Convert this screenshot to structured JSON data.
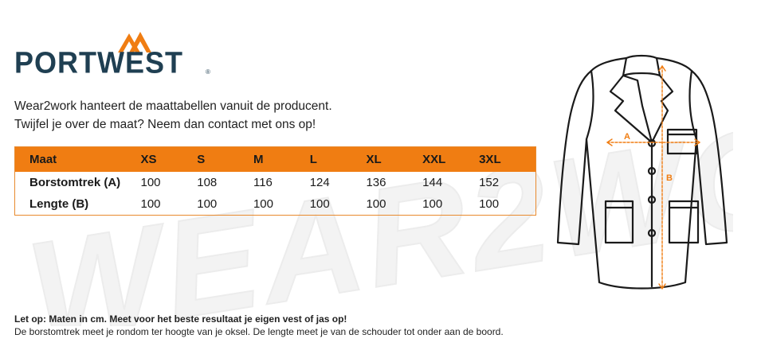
{
  "brand": {
    "name": "PORTWEST",
    "registered_mark": "®",
    "colors": {
      "navy": "#1f3f52",
      "orange": "#f07d12"
    }
  },
  "watermark": {
    "text": "WEAR2WORK"
  },
  "intro": {
    "line1": "Wear2work hanteert de maattabellen vanuit de producent.",
    "line2": "Twijfel je over de maat? Neem dan contact met ons op!"
  },
  "size_table": {
    "header": [
      "Maat",
      "XS",
      "S",
      "M",
      "L",
      "XL",
      "XXL",
      "3XL"
    ],
    "rows": [
      {
        "label": "Borstomtrek (A)",
        "values": [
          "100",
          "108",
          "116",
          "124",
          "136",
          "144",
          "152"
        ]
      },
      {
        "label": "Lengte (B)",
        "values": [
          "100",
          "100",
          "100",
          "100",
          "100",
          "100",
          "100"
        ]
      }
    ]
  },
  "diagram": {
    "label_a": "A",
    "label_b": "B"
  },
  "note": {
    "bold": "Let op: Maten in cm. Meet voor het beste resultaat je eigen vest of jas op!",
    "text": "De borstomtrek meet je rondom ter hoogte van je oksel. De lengte meet je van de schouder tot onder aan de boord."
  }
}
